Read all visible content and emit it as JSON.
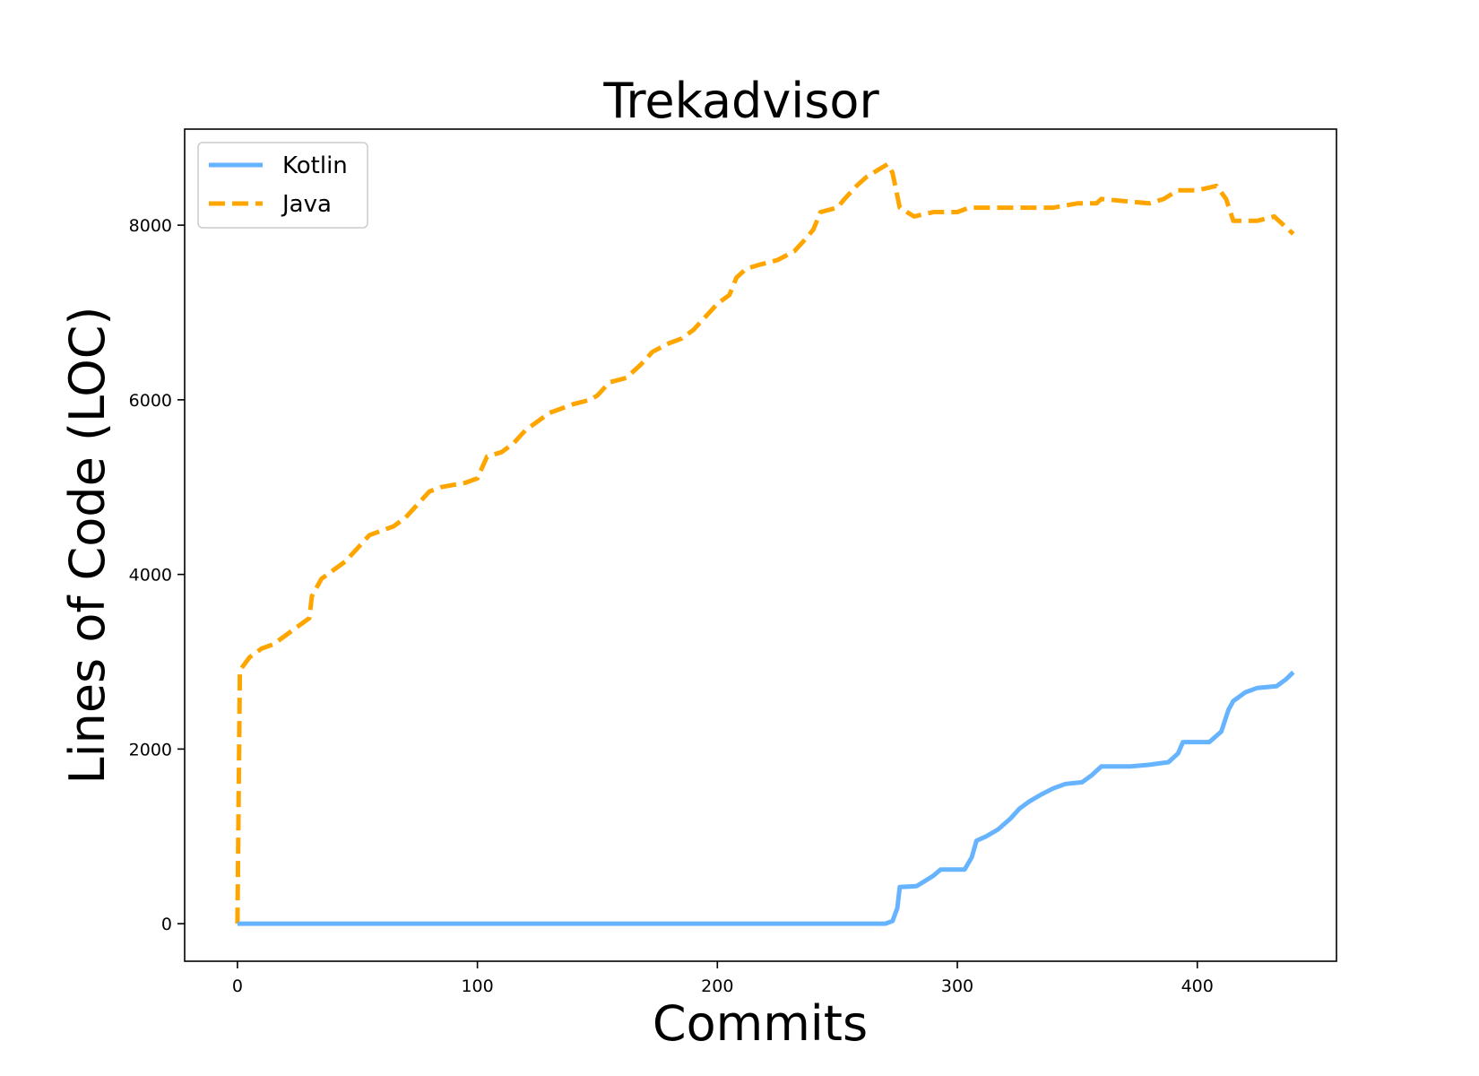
{
  "chart_data": {
    "type": "line",
    "title": "Trekadvisor",
    "xlabel": "Commits",
    "ylabel": "Lines of Code (LOC)",
    "xlim": [
      -22,
      458
    ],
    "ylim": [
      -430,
      9100
    ],
    "xticks": [
      0,
      100,
      200,
      300,
      400
    ],
    "yticks": [
      0,
      2000,
      4000,
      6000,
      8000
    ],
    "grid": false,
    "legend": "top-left",
    "series": [
      {
        "name": "Kotlin",
        "color": "#66b3ff",
        "style": "solid",
        "points": [
          [
            0,
            0
          ],
          [
            270,
            0
          ],
          [
            273,
            30
          ],
          [
            275,
            180
          ],
          [
            276,
            420
          ],
          [
            283,
            430
          ],
          [
            286,
            480
          ],
          [
            290,
            550
          ],
          [
            293,
            620
          ],
          [
            303,
            620
          ],
          [
            306,
            760
          ],
          [
            308,
            950
          ],
          [
            312,
            1000
          ],
          [
            317,
            1080
          ],
          [
            322,
            1200
          ],
          [
            326,
            1320
          ],
          [
            330,
            1400
          ],
          [
            335,
            1480
          ],
          [
            340,
            1550
          ],
          [
            345,
            1600
          ],
          [
            352,
            1620
          ],
          [
            356,
            1700
          ],
          [
            360,
            1800
          ],
          [
            372,
            1800
          ],
          [
            380,
            1820
          ],
          [
            388,
            1850
          ],
          [
            392,
            1950
          ],
          [
            394,
            2080
          ],
          [
            405,
            2080
          ],
          [
            410,
            2200
          ],
          [
            413,
            2450
          ],
          [
            415,
            2550
          ],
          [
            420,
            2650
          ],
          [
            425,
            2700
          ],
          [
            433,
            2720
          ],
          [
            437,
            2800
          ],
          [
            440,
            2880
          ]
        ]
      },
      {
        "name": "Java",
        "color": "#ffa500",
        "style": "dashed",
        "points": [
          [
            0,
            0
          ],
          [
            1,
            2900
          ],
          [
            5,
            3050
          ],
          [
            10,
            3150
          ],
          [
            15,
            3200
          ],
          [
            20,
            3300
          ],
          [
            25,
            3400
          ],
          [
            30,
            3500
          ],
          [
            31,
            3750
          ],
          [
            35,
            3950
          ],
          [
            40,
            4050
          ],
          [
            45,
            4150
          ],
          [
            50,
            4300
          ],
          [
            55,
            4450
          ],
          [
            60,
            4500
          ],
          [
            65,
            4550
          ],
          [
            70,
            4650
          ],
          [
            75,
            4800
          ],
          [
            80,
            4950
          ],
          [
            85,
            5000
          ],
          [
            95,
            5050
          ],
          [
            100,
            5100
          ],
          [
            104,
            5350
          ],
          [
            110,
            5400
          ],
          [
            115,
            5500
          ],
          [
            120,
            5650
          ],
          [
            125,
            5750
          ],
          [
            130,
            5850
          ],
          [
            135,
            5900
          ],
          [
            140,
            5950
          ],
          [
            147,
            6000
          ],
          [
            150,
            6050
          ],
          [
            155,
            6200
          ],
          [
            162,
            6250
          ],
          [
            168,
            6400
          ],
          [
            173,
            6550
          ],
          [
            180,
            6650
          ],
          [
            185,
            6700
          ],
          [
            190,
            6800
          ],
          [
            195,
            6950
          ],
          [
            200,
            7100
          ],
          [
            205,
            7200
          ],
          [
            208,
            7400
          ],
          [
            212,
            7500
          ],
          [
            218,
            7550
          ],
          [
            225,
            7600
          ],
          [
            232,
            7700
          ],
          [
            237,
            7850
          ],
          [
            240,
            7950
          ],
          [
            243,
            8150
          ],
          [
            250,
            8200
          ],
          [
            253,
            8300
          ],
          [
            258,
            8450
          ],
          [
            262,
            8550
          ],
          [
            268,
            8650
          ],
          [
            271,
            8700
          ],
          [
            273,
            8600
          ],
          [
            276,
            8200
          ],
          [
            282,
            8100
          ],
          [
            290,
            8150
          ],
          [
            300,
            8150
          ],
          [
            305,
            8200
          ],
          [
            320,
            8200
          ],
          [
            340,
            8200
          ],
          [
            350,
            8250
          ],
          [
            358,
            8250
          ],
          [
            360,
            8300
          ],
          [
            380,
            8250
          ],
          [
            386,
            8300
          ],
          [
            392,
            8400
          ],
          [
            400,
            8400
          ],
          [
            408,
            8450
          ],
          [
            412,
            8300
          ],
          [
            415,
            8050
          ],
          [
            425,
            8050
          ],
          [
            432,
            8100
          ],
          [
            436,
            8000
          ],
          [
            440,
            7900
          ]
        ]
      }
    ]
  }
}
